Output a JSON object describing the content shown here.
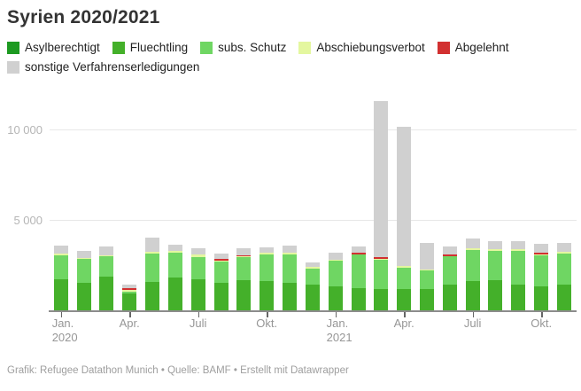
{
  "title": "Syrien 2020/2021",
  "legend": {
    "items": [
      {
        "label": "Asylberechtigt",
        "color": "#1d9a21"
      },
      {
        "label": "Fluechtling",
        "color": "#44b02a"
      },
      {
        "label": "subs. Schutz",
        "color": "#6fd663"
      },
      {
        "label": "Abschiebungsverbot",
        "color": "#e4f79f"
      },
      {
        "label": "Abgelehnt",
        "color": "#d23030"
      },
      {
        "label": "sonstige Verfahrenserledigungen",
        "color": "#d0d0d0"
      }
    ]
  },
  "y_axis": {
    "ticks": [
      {
        "value": 10000,
        "label": "10 000"
      },
      {
        "value": 5000,
        "label": "5 000"
      }
    ]
  },
  "x_axis": {
    "ticks": [
      {
        "index": 0,
        "label": "Jan.",
        "year": "2020"
      },
      {
        "index": 3,
        "label": "Apr."
      },
      {
        "index": 6,
        "label": "Juli"
      },
      {
        "index": 9,
        "label": "Okt."
      },
      {
        "index": 12,
        "label": "Jan.",
        "year": "2021"
      },
      {
        "index": 15,
        "label": "Apr."
      },
      {
        "index": 18,
        "label": "Juli"
      },
      {
        "index": 21,
        "label": "Okt."
      }
    ]
  },
  "footer": "Grafik: Refugee Datathon Munich • Quelle: BAMF • Erstellt mit Datawrapper",
  "chart_data": {
    "type": "bar",
    "stacked": true,
    "title": "Syrien 2020/2021",
    "xlabel": "",
    "ylabel": "",
    "ylim": [
      0,
      12300
    ],
    "grid": true,
    "gridlines": [
      5000,
      10000
    ],
    "legend_position": "top",
    "categories": [
      "Jan. 2020",
      "Feb. 2020",
      "Mär. 2020",
      "Apr. 2020",
      "Mai 2020",
      "Jun. 2020",
      "Jul. 2020",
      "Aug. 2020",
      "Sep. 2020",
      "Okt. 2020",
      "Nov. 2020",
      "Dez. 2020",
      "Jan. 2021",
      "Feb. 2021",
      "Mär. 2021",
      "Apr. 2021",
      "Mai 2021",
      "Jun. 2021",
      "Jul. 2021",
      "Aug. 2021",
      "Sep. 2021",
      "Okt. 2021",
      "Nov. 2021"
    ],
    "series": [
      {
        "name": "Asylberechtigt",
        "color": "#1d9a21",
        "values": [
          20,
          20,
          20,
          10,
          20,
          20,
          20,
          20,
          20,
          20,
          20,
          20,
          20,
          20,
          20,
          20,
          20,
          20,
          20,
          20,
          20,
          20,
          20
        ]
      },
      {
        "name": "Fluechtling",
        "color": "#44b02a",
        "values": [
          1760,
          1550,
          1870,
          990,
          1600,
          1850,
          1760,
          1550,
          1720,
          1630,
          1570,
          1440,
          1360,
          1270,
          1230,
          1230,
          1190,
          1440,
          1630,
          1720,
          1470,
          1360,
          1440
        ]
      },
      {
        "name": "subs. Schutz",
        "color": "#6fd663",
        "values": [
          1310,
          1320,
          1130,
          100,
          1580,
          1350,
          1230,
          1190,
          1270,
          1470,
          1570,
          880,
          1420,
          1850,
          1570,
          1170,
          1030,
          1570,
          1750,
          1590,
          1860,
          1690,
          1740
        ]
      },
      {
        "name": "Abschiebungsverbot",
        "color": "#e4f79f",
        "values": [
          80,
          60,
          50,
          70,
          80,
          120,
          110,
          50,
          30,
          100,
          70,
          100,
          30,
          0,
          50,
          80,
          70,
          0,
          80,
          80,
          100,
          50,
          80
        ]
      },
      {
        "name": "Abgelehnt",
        "color": "#d23030",
        "values": [
          0,
          0,
          0,
          100,
          0,
          0,
          0,
          80,
          60,
          0,
          0,
          0,
          0,
          100,
          100,
          0,
          0,
          130,
          0,
          0,
          0,
          100,
          0
        ]
      },
      {
        "name": "sonstige Verfahrenserledigungen",
        "color": "#d0d0d0",
        "values": [
          440,
          380,
          500,
          180,
          810,
          320,
          380,
          320,
          360,
          330,
          390,
          250,
          390,
          360,
          8660,
          7710,
          1470,
          440,
          520,
          440,
          440,
          490,
          480
        ]
      }
    ]
  }
}
